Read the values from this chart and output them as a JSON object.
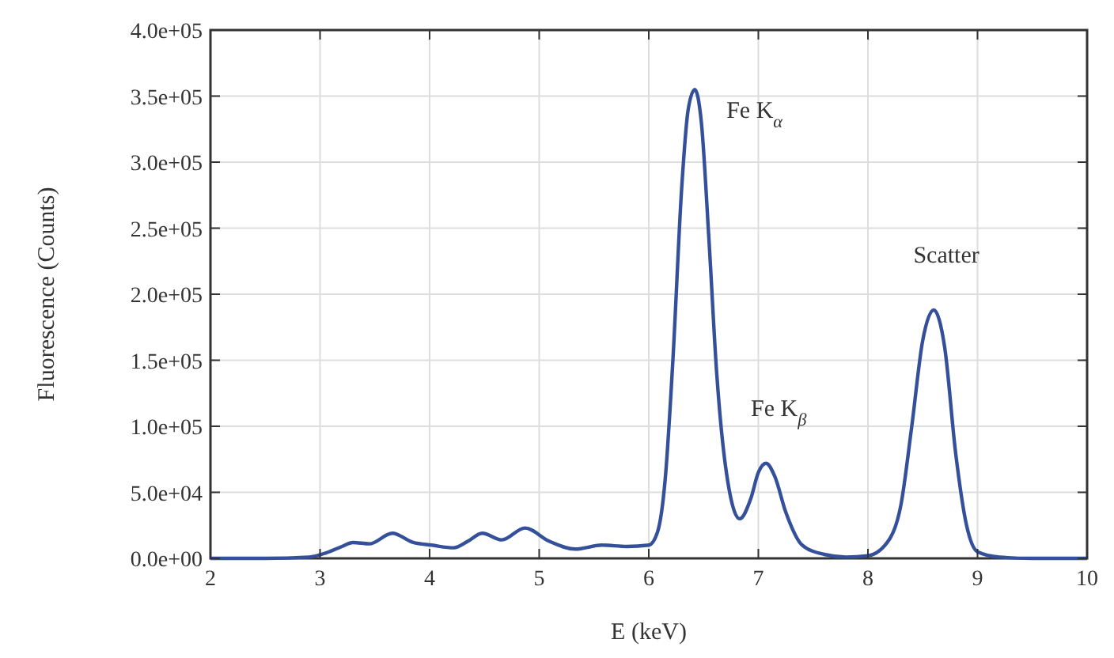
{
  "chart_data": {
    "type": "line",
    "xlabel": "E (keV)",
    "ylabel": "Fluorescence (Counts)",
    "xlim": [
      2,
      10
    ],
    "xticks": [
      2,
      3,
      4,
      5,
      6,
      7,
      8,
      9,
      10
    ],
    "ylim": [
      0,
      400000
    ],
    "yticks": [
      {
        "value": 0,
        "label": "0.0e+00"
      },
      {
        "value": 50000,
        "label": "5.0e+04"
      },
      {
        "value": 100000,
        "label": "1.0e+05"
      },
      {
        "value": 150000,
        "label": "1.5e+05"
      },
      {
        "value": 200000,
        "label": "2.0e+05"
      },
      {
        "value": 250000,
        "label": "2.5e+05"
      },
      {
        "value": 300000,
        "label": "3.0e+05"
      },
      {
        "value": 350000,
        "label": "3.5e+05"
      },
      {
        "value": 400000,
        "label": "4.0e+05"
      }
    ],
    "grid": true,
    "marker": "none",
    "line_style": "solid",
    "series": [
      {
        "color": "#34509a",
        "x": [
          2,
          2.5,
          2.9,
          3.05,
          3.2,
          3.3,
          3.45,
          3.66,
          3.85,
          4.02,
          4.22,
          4.35,
          4.48,
          4.66,
          4.87,
          5.09,
          5.33,
          5.57,
          5.8,
          6.0,
          6.08,
          6.15,
          6.22,
          6.3,
          6.36,
          6.42,
          6.48,
          6.55,
          6.62,
          6.7,
          6.83,
          6.93,
          7.0,
          7.07,
          7.15,
          7.25,
          7.4,
          7.6,
          7.8,
          8.0,
          8.2,
          8.3,
          8.4,
          8.5,
          8.6,
          8.7,
          8.8,
          8.9,
          9.0,
          9.2,
          9.5,
          10
        ],
        "values": [
          0,
          0,
          1000,
          4000,
          9000,
          12000,
          11000,
          19000,
          12000,
          10000,
          8000,
          13000,
          19000,
          14000,
          23000,
          13000,
          7000,
          10000,
          9000,
          10000,
          20000,
          60000,
          150000,
          280000,
          340000,
          355000,
          330000,
          240000,
          140000,
          70000,
          30000,
          45000,
          65000,
          72000,
          62000,
          35000,
          10000,
          3000,
          1000,
          2000,
          15000,
          40000,
          100000,
          165000,
          188000,
          160000,
          80000,
          25000,
          5000,
          1000,
          0,
          0
        ]
      }
    ],
    "annotations": [
      {
        "text": "Fe K$_{α}$",
        "x": 6.42,
        "y": 355000
      },
      {
        "text": "Fe K$_{β}$",
        "x": 7.07,
        "y": 72000
      },
      {
        "text": "Scatter",
        "x": 8.6,
        "y": 188000
      }
    ]
  }
}
